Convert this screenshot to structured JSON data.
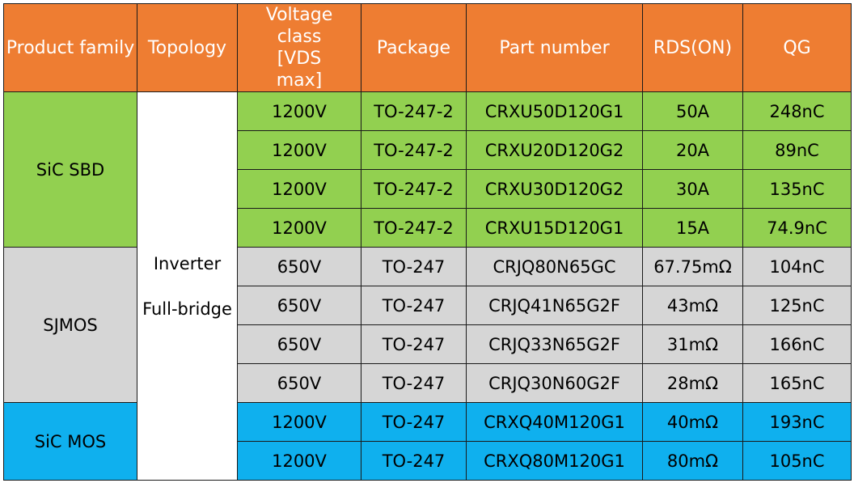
{
  "headers": [
    "Product family",
    "Topology",
    "Voltage class [VDS max]",
    "Package",
    "Part number",
    "RDS(ON)",
    "QG"
  ],
  "topology": [
    "Inverter",
    "Full-bridge"
  ],
  "families": [
    {
      "name": "SiC SBD",
      "color": "#92d050",
      "rows": [
        {
          "voltage": "1200V",
          "package": "TO-247-2",
          "part": "CRXU50D120G1",
          "rds": "50A",
          "qg": "248nC"
        },
        {
          "voltage": "1200V",
          "package": "TO-247-2",
          "part": "CRXU20D120G2",
          "rds": "20A",
          "qg": "89nC"
        },
        {
          "voltage": "1200V",
          "package": "TO-247-2",
          "part": "CRXU30D120G2",
          "rds": "30A",
          "qg": "135nC"
        },
        {
          "voltage": "1200V",
          "package": "TO-247-2",
          "part": "CRXU15D120G1",
          "rds": "15A",
          "qg": "74.9nC"
        }
      ]
    },
    {
      "name": "SJMOS",
      "color": "#d6d6d6",
      "rows": [
        {
          "voltage": "650V",
          "package": "TO-247",
          "part": "CRJQ80N65GC",
          "rds": "67.75mΩ",
          "qg": "104nC"
        },
        {
          "voltage": "650V",
          "package": "TO-247",
          "part": "CRJQ41N65G2F",
          "rds": "43mΩ",
          "qg": "125nC"
        },
        {
          "voltage": "650V",
          "package": "TO-247",
          "part": "CRJQ33N65G2F",
          "rds": "31mΩ",
          "qg": "166nC"
        },
        {
          "voltage": "650V",
          "package": "TO-247",
          "part": "CRJQ30N60G2F",
          "rds": "28mΩ",
          "qg": "165nC"
        }
      ]
    },
    {
      "name": "SiC MOS",
      "color": "#0fb0ee",
      "rows": [
        {
          "voltage": "1200V",
          "package": "TO-247",
          "part": "CRXQ40M120G1",
          "rds": "40mΩ",
          "qg": "193nC"
        },
        {
          "voltage": "1200V",
          "package": "TO-247",
          "part": "CRXQ80M120G1",
          "rds": "80mΩ",
          "qg": "105nC"
        }
      ]
    }
  ],
  "colors": {
    "header": "#ee7d32",
    "header_text": "#ffffff",
    "border": "#1a1a1a"
  }
}
